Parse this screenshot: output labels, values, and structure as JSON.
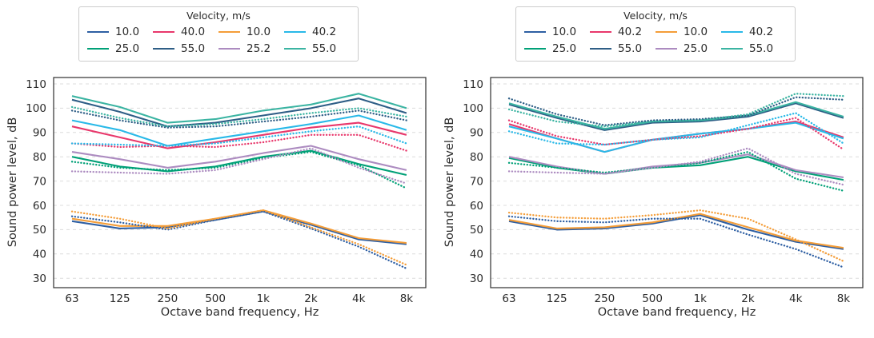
{
  "page": {
    "background": "#ffffff",
    "text_color": "#2b2b2b",
    "grid_color": "#dcdcdc",
    "border_color": "#2f2f2f"
  },
  "palette": {
    "blue": "#2e5fa3",
    "green": "#00a077",
    "crimson": "#e8376b",
    "slate": "#2e5e86",
    "orange": "#f49d38",
    "purple": "#ac8bc0",
    "cyan": "#29b9e8",
    "teal": "#3bb4a2"
  },
  "chart_data": [
    {
      "type": "line",
      "panel": "left",
      "xlabel": "Octave band frequency, Hz",
      "ylabel": "Sound power level, dB",
      "x_ticks": [
        "63",
        "125",
        "250",
        "500",
        "1k",
        "2k",
        "4k",
        "8k"
      ],
      "y_ticks": [
        30,
        40,
        50,
        60,
        70,
        80,
        90,
        100,
        110
      ],
      "ylim": [
        26,
        113
      ],
      "grid": "horizontal-dashed",
      "legend": {
        "title": "Velocity, m/s",
        "entries": [
          {
            "label": "10.0",
            "color": "#2e5fa3"
          },
          {
            "label": "40.0",
            "color": "#e8376b"
          },
          {
            "label": "10.0",
            "color": "#f49d38"
          },
          {
            "label": "40.2",
            "color": "#29b9e8"
          },
          {
            "label": "25.0",
            "color": "#00a077"
          },
          {
            "label": "55.0",
            "color": "#2e5e86"
          },
          {
            "label": "25.2",
            "color": "#ac8bc0"
          },
          {
            "label": "55.0",
            "color": "#3bb4a2"
          }
        ]
      },
      "series": [
        {
          "name": "10.0",
          "color": "#2e5fa3",
          "style": "solid",
          "values": [
            53.5,
            50.5,
            51,
            54,
            57.5,
            52,
            46,
            44
          ]
        },
        {
          "name": "25.0",
          "color": "#00a077",
          "style": "solid",
          "values": [
            80,
            76,
            74,
            76,
            80,
            82.5,
            77,
            72.5
          ]
        },
        {
          "name": "40.0",
          "color": "#e8376b",
          "style": "solid",
          "values": [
            92.5,
            88,
            83.5,
            86,
            89,
            92,
            94,
            89
          ]
        },
        {
          "name": "55.0",
          "color": "#2e5e86",
          "style": "solid",
          "values": [
            103.5,
            98.5,
            92.5,
            94,
            97,
            100,
            104,
            98
          ]
        },
        {
          "name": "10.0",
          "color": "#f49d38",
          "style": "solid",
          "values": [
            54.5,
            51.5,
            51.5,
            54.5,
            58,
            52.5,
            46.5,
            44.5
          ]
        },
        {
          "name": "25.2",
          "color": "#ac8bc0",
          "style": "solid",
          "values": [
            82,
            79,
            75.5,
            78,
            81.5,
            84.5,
            79,
            74.5
          ]
        },
        {
          "name": "40.2",
          "color": "#29b9e8",
          "style": "solid",
          "values": [
            95,
            91,
            84.5,
            87.5,
            90.5,
            93.5,
            97,
            91
          ]
        },
        {
          "name": "55.0",
          "color": "#3bb4a2",
          "style": "solid",
          "values": [
            105,
            100.5,
            94,
            95.5,
            99,
            101.5,
            106,
            100
          ]
        },
        {
          "name": "10.0",
          "color": "#2e5fa3",
          "style": "dotted",
          "values": [
            55.5,
            53,
            50,
            54,
            57.5,
            50.5,
            43,
            34
          ]
        },
        {
          "name": "25.0",
          "color": "#00a077",
          "style": "dotted",
          "values": [
            78,
            75.5,
            74.5,
            75.5,
            79.5,
            82,
            76.5,
            67
          ]
        },
        {
          "name": "40.0",
          "color": "#e8376b",
          "style": "dotted",
          "values": [
            85.5,
            84,
            84.5,
            84,
            86,
            89,
            89,
            82.5
          ]
        },
        {
          "name": "55.0",
          "color": "#2e5e86",
          "style": "dotted",
          "values": [
            99,
            95,
            92,
            92.5,
            94.5,
            96.5,
            99,
            95
          ]
        },
        {
          "name": "10.0",
          "color": "#f49d38",
          "style": "dotted",
          "values": [
            57.5,
            54.5,
            50.5,
            54.5,
            58,
            51,
            44,
            35.5
          ]
        },
        {
          "name": "25.2",
          "color": "#ac8bc0",
          "style": "dotted",
          "values": [
            74,
            73.5,
            73,
            74.5,
            79,
            83.5,
            75.5,
            69
          ]
        },
        {
          "name": "40.2",
          "color": "#29b9e8",
          "style": "dotted",
          "values": [
            85.5,
            85,
            84.5,
            85.5,
            88,
            90.5,
            92.5,
            85.5
          ]
        },
        {
          "name": "55.0",
          "color": "#3bb4a2",
          "style": "dotted",
          "values": [
            100.5,
            96,
            92.5,
            93.5,
            95.5,
            98,
            100,
            96.5
          ]
        }
      ]
    },
    {
      "type": "line",
      "panel": "right",
      "xlabel": "Octave band frequency, Hz",
      "ylabel": "Sound power level, dB",
      "x_ticks": [
        "63",
        "125",
        "250",
        "500",
        "1k",
        "2k",
        "4k",
        "8k"
      ],
      "y_ticks": [
        30,
        40,
        50,
        60,
        70,
        80,
        90,
        100,
        110
      ],
      "ylim": [
        26,
        113
      ],
      "grid": "horizontal-dashed",
      "legend": {
        "title": "Velocity, m/s",
        "entries": [
          {
            "label": "10.0",
            "color": "#2e5fa3"
          },
          {
            "label": "40.2",
            "color": "#e8376b"
          },
          {
            "label": "10.0",
            "color": "#f49d38"
          },
          {
            "label": "40.2",
            "color": "#29b9e8"
          },
          {
            "label": "25.0",
            "color": "#00a077"
          },
          {
            "label": "55.0",
            "color": "#2e5e86"
          },
          {
            "label": "25.0",
            "color": "#ac8bc0"
          },
          {
            "label": "55.0",
            "color": "#3bb4a2"
          }
        ]
      },
      "series": [
        {
          "name": "10.0",
          "color": "#2e5fa3",
          "style": "solid",
          "values": [
            53.5,
            50,
            50.5,
            52.5,
            56,
            50,
            45,
            42
          ]
        },
        {
          "name": "25.0",
          "color": "#00a077",
          "style": "solid",
          "values": [
            79.5,
            75.5,
            73,
            75.5,
            76.5,
            80,
            74,
            70.5
          ]
        },
        {
          "name": "40.2",
          "color": "#e8376b",
          "style": "solid",
          "values": [
            93.5,
            87.5,
            82,
            87,
            89.5,
            91.5,
            94.5,
            88
          ]
        },
        {
          "name": "55.0",
          "color": "#2e5e86",
          "style": "solid",
          "values": [
            101.5,
            96,
            91,
            94,
            94.5,
            96.5,
            102,
            96
          ]
        },
        {
          "name": "10.0",
          "color": "#f49d38",
          "style": "solid",
          "values": [
            54,
            50.5,
            51,
            53,
            56.5,
            51,
            45.5,
            42.5
          ]
        },
        {
          "name": "25.0",
          "color": "#ac8bc0",
          "style": "solid",
          "values": [
            80,
            76,
            73,
            76,
            77.5,
            81,
            74.5,
            71.5
          ]
        },
        {
          "name": "40.2",
          "color": "#29b9e8",
          "style": "solid",
          "values": [
            92.5,
            87.5,
            82,
            87,
            89.5,
            91.5,
            94,
            87.5
          ]
        },
        {
          "name": "55.0",
          "color": "#3bb4a2",
          "style": "solid",
          "values": [
            102,
            96.5,
            91.5,
            94.5,
            95,
            97,
            102.5,
            96.5
          ]
        },
        {
          "name": "10.0",
          "color": "#2e5fa3",
          "style": "dotted",
          "values": [
            55.5,
            53.5,
            53,
            54.5,
            54.5,
            48,
            42,
            34.5
          ]
        },
        {
          "name": "25.0",
          "color": "#00a077",
          "style": "dotted",
          "values": [
            77.5,
            75.5,
            73.5,
            75.5,
            77.5,
            82,
            71,
            66
          ]
        },
        {
          "name": "40.2",
          "color": "#e8376b",
          "style": "dotted",
          "values": [
            95,
            88.5,
            85,
            87,
            88.5,
            91.5,
            96,
            83
          ]
        },
        {
          "name": "55.0",
          "color": "#2e5e86",
          "style": "dotted",
          "values": [
            104,
            97.5,
            93,
            95,
            95.5,
            97,
            104.5,
            103.5
          ]
        },
        {
          "name": "10.0",
          "color": "#f49d38",
          "style": "dotted",
          "values": [
            57,
            55,
            54.5,
            56,
            58,
            54.5,
            46,
            37
          ]
        },
        {
          "name": "25.0",
          "color": "#ac8bc0",
          "style": "dotted",
          "values": [
            74,
            73.5,
            73,
            75.5,
            78,
            83.5,
            73,
            68.5
          ]
        },
        {
          "name": "40.2",
          "color": "#29b9e8",
          "style": "dotted",
          "values": [
            90.5,
            85.5,
            85,
            87,
            88,
            93,
            98,
            85.5
          ]
        },
        {
          "name": "55.0",
          "color": "#3bb4a2",
          "style": "dotted",
          "values": [
            99.5,
            94.5,
            92.5,
            94.5,
            95,
            97.5,
            106,
            105
          ]
        }
      ]
    }
  ]
}
